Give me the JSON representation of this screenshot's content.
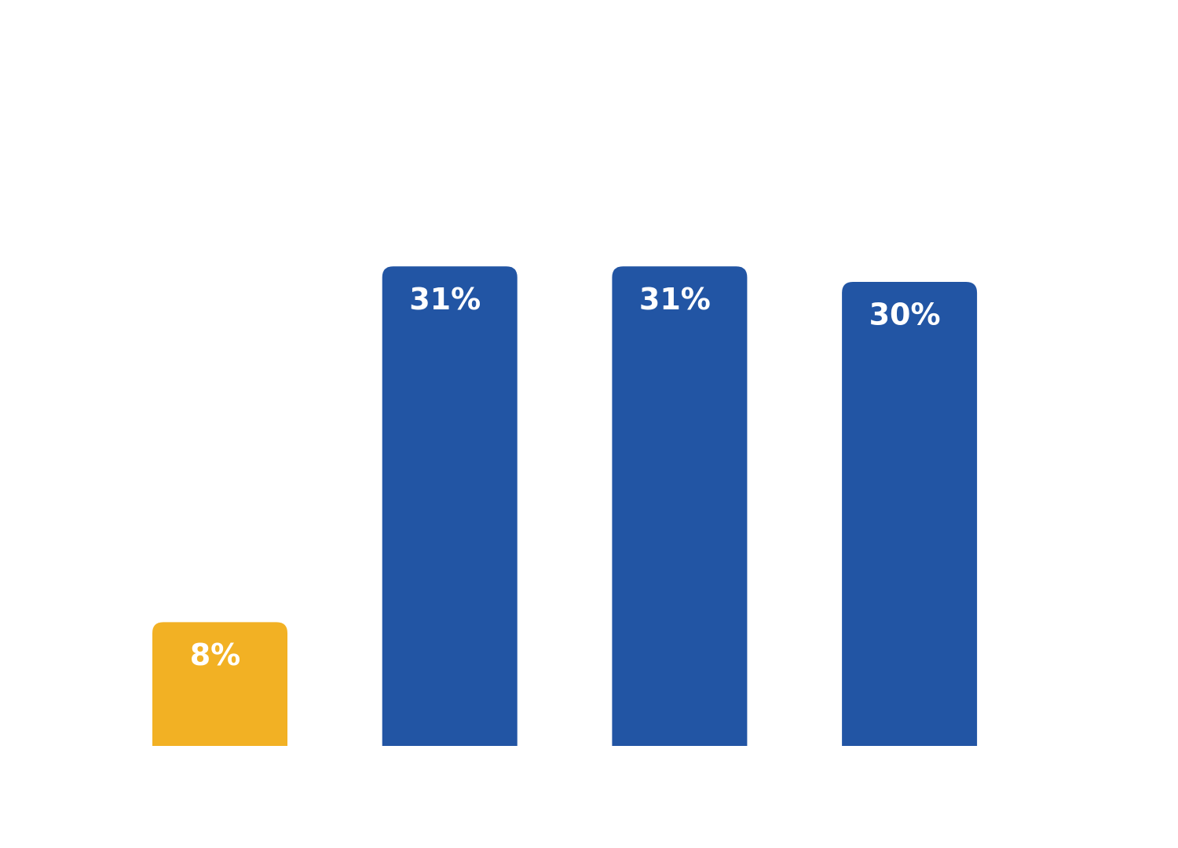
{
  "chart_data": {
    "type": "bar",
    "categories": [
      null,
      null,
      null,
      null
    ],
    "values": [
      8,
      31,
      31,
      30
    ],
    "value_labels": [
      "8%",
      "31%",
      "31%",
      "30%"
    ],
    "colors": [
      "#f2b124",
      "#2255a4",
      "#2255a4",
      "#2255a4"
    ]
  }
}
